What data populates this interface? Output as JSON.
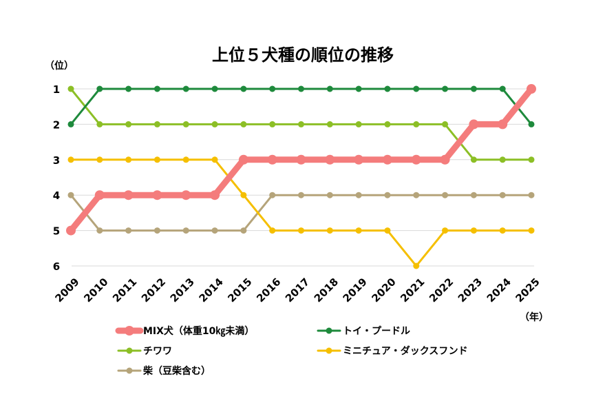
{
  "chart_data": {
    "type": "line",
    "title": "上位５犬種の順位の推移",
    "ylabel": "（位）",
    "xlabel": "（年）",
    "ylim": [
      1,
      6
    ],
    "y_ticks": [
      "1",
      "2",
      "3",
      "4",
      "5",
      "6"
    ],
    "categories": [
      "2009",
      "2010",
      "2011",
      "2012",
      "2013",
      "2014",
      "2015",
      "2016",
      "2017",
      "2018",
      "2019",
      "2020",
      "2021",
      "2022",
      "2023",
      "2024",
      "2025"
    ],
    "grid": true,
    "legend_position": "bottom",
    "series": [
      {
        "name": "MIX犬（体重10㎏未満）",
        "color": "#f47c7c",
        "emphasis": true,
        "values": [
          5,
          4,
          4,
          4,
          4,
          4,
          3,
          3,
          3,
          3,
          3,
          3,
          3,
          3,
          2,
          2,
          1
        ]
      },
      {
        "name": "トイ・プードル",
        "color": "#1e8a3c",
        "emphasis": false,
        "values": [
          2,
          1,
          1,
          1,
          1,
          1,
          1,
          1,
          1,
          1,
          1,
          1,
          1,
          1,
          1,
          1,
          2
        ]
      },
      {
        "name": "チワワ",
        "color": "#8cbf26",
        "emphasis": false,
        "values": [
          1,
          2,
          2,
          2,
          2,
          2,
          2,
          2,
          2,
          2,
          2,
          2,
          2,
          2,
          3,
          3,
          3
        ]
      },
      {
        "name": "ミニチュア・ダックスフンド",
        "color": "#f5bf00",
        "emphasis": false,
        "values": [
          3,
          3,
          3,
          3,
          3,
          3,
          4,
          5,
          5,
          5,
          5,
          5,
          6,
          5,
          5,
          5,
          5
        ]
      },
      {
        "name": "柴（豆柴含む）",
        "color": "#b5a47a",
        "emphasis": false,
        "values": [
          4,
          5,
          5,
          5,
          5,
          5,
          5,
          4,
          4,
          4,
          4,
          4,
          4,
          4,
          4,
          4,
          4
        ]
      }
    ],
    "draw_order": [
      2,
      1,
      4,
      3,
      0
    ]
  }
}
